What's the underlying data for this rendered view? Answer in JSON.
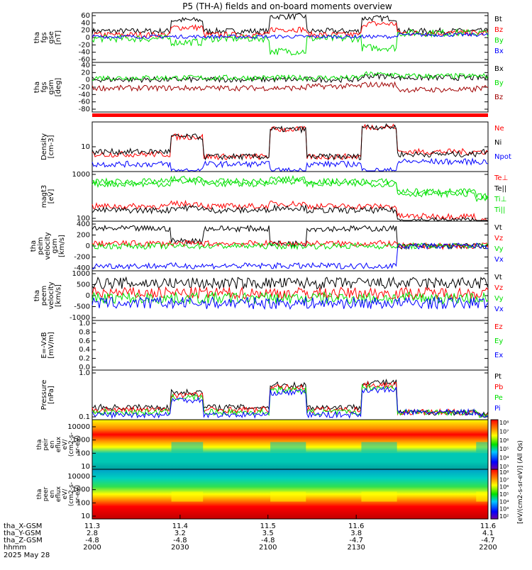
{
  "title": "P5 (TH-A) fields and on-board moments overview",
  "colors": {
    "black": "#000000",
    "red": "#ff0000",
    "green": "#00e000",
    "blue": "#0000ff",
    "darkred": "#a00000"
  },
  "chart_data": [
    {
      "type": "line",
      "panel": "fgs_gse",
      "ylabel_lines": [
        "tha",
        "fgs",
        "gse",
        "[nT]"
      ],
      "yticks": [
        "60",
        "40",
        "20",
        "0",
        "-20",
        "-40",
        "-60"
      ],
      "ylim": [
        -70,
        65
      ],
      "series": [
        {
          "name": "Bt",
          "color": "#000000",
          "levels": [
            15,
            45,
            15,
            55,
            15,
            50,
            15,
            15
          ],
          "noise": 8
        },
        {
          "name": "Bz",
          "color": "#ff0000",
          "levels": [
            5,
            25,
            5,
            20,
            5,
            35,
            10,
            10
          ],
          "noise": 8
        },
        {
          "name": "By",
          "color": "#00e000",
          "levels": [
            -5,
            -15,
            -5,
            -40,
            -5,
            -30,
            10,
            10
          ],
          "noise": 10
        },
        {
          "name": "Bx",
          "color": "#0000ff",
          "levels": [
            0,
            0,
            0,
            0,
            0,
            0,
            5,
            5
          ],
          "noise": 5
        }
      ]
    },
    {
      "type": "line",
      "panel": "fgs_gsm",
      "ylabel_lines": [
        "tha",
        "fgs",
        "gsm",
        "[deg]"
      ],
      "yticks": [
        "40",
        "20",
        "0",
        "-20",
        "-40",
        "-60",
        "-80"
      ],
      "ylim": [
        -100,
        45
      ],
      "series": [
        {
          "name": "Bx",
          "color": "#000000",
          "levels": [
            -5,
            -5,
            -5,
            -5,
            -5,
            5,
            0,
            0
          ],
          "noise": 8
        },
        {
          "name": "By",
          "color": "#00e000",
          "levels": [
            0,
            0,
            0,
            0,
            0,
            10,
            5,
            5
          ],
          "noise": 8
        },
        {
          "name": "Bz",
          "color": "#a00000",
          "levels": [
            -30,
            -30,
            -30,
            -30,
            -25,
            -20,
            -35,
            -30
          ],
          "noise": 8
        }
      ]
    },
    {
      "type": "line",
      "panel": "density",
      "ylabel_lines": [
        "Density",
        "[cm-3]"
      ],
      "yticks": [
        "10"
      ],
      "scale": "log",
      "series": [
        {
          "name": "Ne",
          "color": "#ff0000"
        },
        {
          "name": "Ni",
          "color": "#000000"
        },
        {
          "name": "Npot",
          "color": "#0000ff"
        }
      ]
    },
    {
      "type": "line",
      "panel": "temperature",
      "ylabel_lines": [
        "magt3",
        "[eV]"
      ],
      "yticks": [
        "1000",
        "100"
      ],
      "scale": "log",
      "series": [
        {
          "name": "Te⊥",
          "color": "#ff0000"
        },
        {
          "name": "Te||",
          "color": "#000000"
        },
        {
          "name": "Ti⊥",
          "color": "#00e000"
        },
        {
          "name": "Ti||",
          "color": "#00e000"
        }
      ]
    },
    {
      "type": "line",
      "panel": "peim_velocity",
      "ylabel_lines": [
        "tha",
        "peim",
        "velocity",
        "gsm",
        "[km/s]"
      ],
      "yticks": [
        "400",
        "200",
        "0",
        "-200",
        "-400"
      ],
      "ylim": [
        -420,
        420
      ],
      "series": [
        {
          "name": "Vt",
          "color": "#000000"
        },
        {
          "name": "Vz",
          "color": "#ff0000"
        },
        {
          "name": "Vy",
          "color": "#00e000"
        },
        {
          "name": "Vx",
          "color": "#0000ff"
        }
      ]
    },
    {
      "type": "line",
      "panel": "peem_velocity",
      "ylabel_lines": [
        "tha",
        "peem",
        "velocity",
        "[km/s]"
      ],
      "yticks": [
        "1000",
        "500",
        "0",
        "-500",
        "-1000"
      ],
      "ylim": [
        -1200,
        1200
      ],
      "series": [
        {
          "name": "Vt",
          "color": "#000000"
        },
        {
          "name": "Vz",
          "color": "#ff0000"
        },
        {
          "name": "Vy",
          "color": "#00e000"
        },
        {
          "name": "Vx",
          "color": "#0000ff"
        }
      ]
    },
    {
      "type": "line",
      "panel": "efield",
      "ylabel_lines": [
        "E=-VxB",
        "[mV/m]"
      ],
      "yticks": [
        "1.0",
        "0.8",
        "0.6",
        "0.4",
        "0.2",
        "0.0"
      ],
      "ylim": [
        0,
        1
      ],
      "series": [
        {
          "name": "Ez",
          "color": "#ff0000"
        },
        {
          "name": "Ey",
          "color": "#00e000"
        },
        {
          "name": "Ex",
          "color": "#0000ff"
        }
      ]
    },
    {
      "type": "line",
      "panel": "pressure",
      "ylabel_lines": [
        "Pressure",
        "[nPa]"
      ],
      "yticks": [
        "1.0",
        "0.1"
      ],
      "scale": "log",
      "series": [
        {
          "name": "Pt",
          "color": "#000000"
        },
        {
          "name": "Pb",
          "color": "#ff0000"
        },
        {
          "name": "Pe",
          "color": "#00e000"
        },
        {
          "name": "Pi",
          "color": "#0000ff"
        }
      ]
    },
    {
      "type": "heatmap",
      "panel": "peir_en_eflux",
      "ylabel_lines": [
        "tha",
        "peir",
        "en",
        "eflux",
        "eV/",
        "(cm2-s-",
        "sr-eV)"
      ],
      "yticks": [
        "10000",
        "1000",
        "100",
        "10"
      ]
    },
    {
      "type": "heatmap",
      "panel": "peer_en_eflux",
      "ylabel_lines": [
        "tha",
        "peer",
        "en",
        "eflux",
        "eV/",
        "(cm2-s-",
        "sr-eV)"
      ],
      "yticks": [
        "10000",
        "1000",
        "100",
        "10"
      ]
    },
    {
      "type": "colorbar",
      "label": "[eV/(cm2-s-sr-eV)] (All Qs)",
      "ticks_upper": [
        "10⁸",
        "10⁷",
        "10⁶",
        "10⁵",
        "10⁴",
        "10³"
      ],
      "ticks_lower": [
        "10⁸",
        "10⁷",
        "10⁶",
        "10⁵",
        "10⁴",
        "10³",
        "10²"
      ]
    }
  ],
  "xaxis": {
    "rows": [
      {
        "label": "tha_X-GSM",
        "values": [
          "11.3",
          "11.4",
          "11.5",
          "11.6",
          "11.6"
        ]
      },
      {
        "label": "tha_Y-GSM",
        "values": [
          "2.8",
          "3.2",
          "3.5",
          "3.8",
          "4.1"
        ]
      },
      {
        "label": "tha_Z-GSM",
        "values": [
          "-4.8",
          "-4.8",
          "-4.8",
          "-4.7",
          "-4.7"
        ]
      },
      {
        "label": "hhmm",
        "values": [
          "2000",
          "2030",
          "2100",
          "2130",
          "2200"
        ]
      }
    ],
    "date": "2025 May 28"
  }
}
